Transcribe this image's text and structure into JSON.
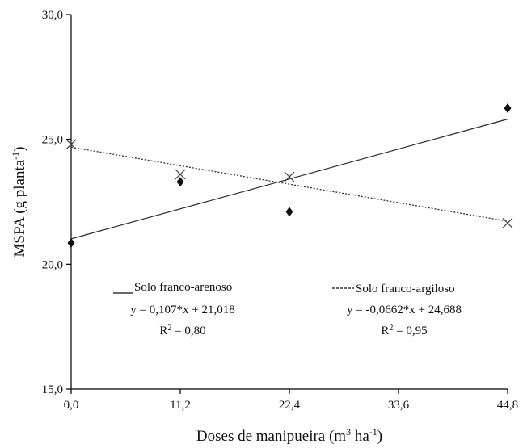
{
  "chart_data": {
    "type": "scatter",
    "title": "",
    "xlabel": {
      "main": "Doses de manipueira (m",
      "sup": "3",
      "mid": " ha",
      "sup2": "-1",
      "end": ")"
    },
    "ylabel": {
      "main": "MSPA (g planta",
      "sup": "-1",
      "end": ")"
    },
    "xlim": [
      0,
      44.8
    ],
    "ylim": [
      15,
      30
    ],
    "xticks": [
      0,
      11.2,
      22.4,
      33.6,
      44.8
    ],
    "xtick_labels": [
      "0,0",
      "11,2",
      "22,4",
      "33,6",
      "44,8"
    ],
    "yticks": [
      15,
      20,
      25,
      30
    ],
    "ytick_labels": [
      "15,0",
      "20,0",
      "25,0",
      "30,0"
    ],
    "grid": false,
    "series": [
      {
        "name": "Solo franco-arenoso",
        "marker": "diamond",
        "line_style": "solid",
        "x": [
          0,
          11.2,
          22.4,
          44.8
        ],
        "y": [
          20.85,
          23.3,
          22.1,
          26.25
        ],
        "fit": {
          "slope": 0.107,
          "intercept": 21.018
        },
        "equation": "y = 0,107*x + 21,018",
        "r2": {
          "label": "R",
          "sup": "2",
          "value": " = 0,80"
        },
        "legend_text": "Solo franco-arenoso"
      },
      {
        "name": "Solo franco-argiloso",
        "marker": "x",
        "line_style": "dotted",
        "x": [
          0,
          11.2,
          22.4,
          44.8
        ],
        "y": [
          24.8,
          23.6,
          23.5,
          21.65
        ],
        "fit": {
          "slope": -0.0662,
          "intercept": 24.688
        },
        "equation": "y = -0,0662*x + 24,688",
        "r2": {
          "label": "R",
          "sup": "2",
          "value": " = 0,95"
        },
        "legend_text": "Solo franco-argiloso"
      }
    ],
    "colors": {
      "axis": "#000000",
      "text": "#111111",
      "marks": "#111111",
      "line": "#333333"
    }
  }
}
